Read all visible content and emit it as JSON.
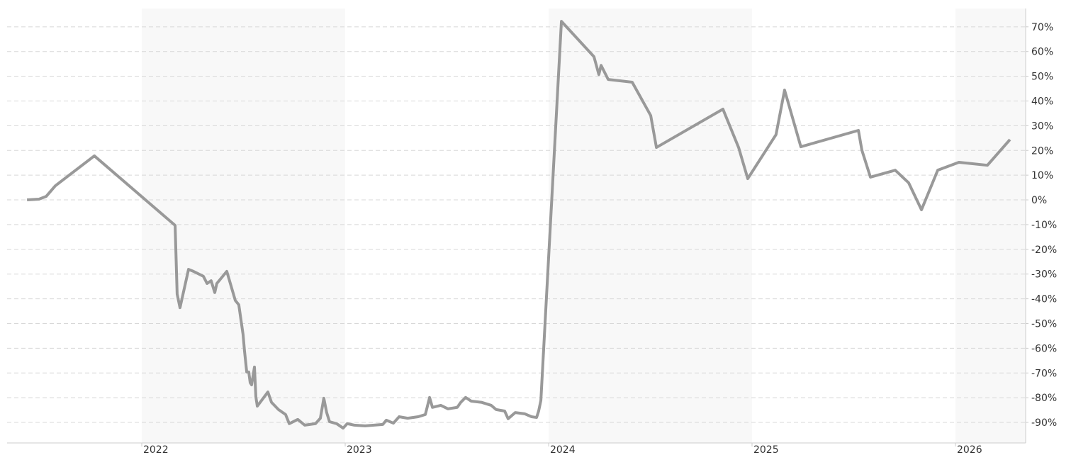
{
  "chart_data": {
    "type": "line",
    "x": [
      2021.436,
      2021.495,
      2021.53,
      2021.575,
      2021.767,
      2022.164,
      2022.174,
      2022.188,
      2022.23,
      2022.254,
      2022.303,
      2022.321,
      2022.341,
      2022.359,
      2022.369,
      2022.418,
      2022.46,
      2022.477,
      2022.498,
      2022.505,
      2022.516,
      2022.526,
      2022.533,
      2022.54,
      2022.554,
      2022.561,
      2022.568,
      2022.62,
      2022.638,
      2022.672,
      2022.707,
      2022.725,
      2022.767,
      2022.801,
      2022.854,
      2022.878,
      2022.895,
      2022.909,
      2022.923,
      2022.958,
      2022.99,
      2023.01,
      2023.045,
      2023.098,
      2023.185,
      2023.202,
      2023.237,
      2023.265,
      2023.307,
      2023.359,
      2023.394,
      2023.415,
      2023.429,
      2023.47,
      2023.505,
      2023.551,
      2023.568,
      2023.592,
      2023.62,
      2023.672,
      2023.718,
      2023.742,
      2023.784,
      2023.801,
      2023.836,
      2023.882,
      2023.916,
      2023.941,
      2023.951,
      2023.962,
      2024.063,
      2024.223,
      2024.247,
      2024.258,
      2024.293,
      2024.411,
      2024.502,
      2024.53,
      2024.857,
      2024.934,
      2024.979,
      2025.118,
      2025.16,
      2025.24,
      2025.523,
      2025.54,
      2025.582,
      2025.704,
      2025.77,
      2025.833,
      2025.913,
      2026.017,
      2026.157,
      2026.268
    ],
    "series": [
      {
        "color": "#999999",
        "values": [
          0,
          0.3,
          1.4,
          5.7,
          17.8,
          -10.3,
          -38.1,
          -43.6,
          -28.1,
          -28.9,
          -30.9,
          -33.8,
          -32.7,
          -37.5,
          -33.8,
          -28.9,
          -40.7,
          -42.4,
          -54.4,
          -61.0,
          -69.6,
          -69.6,
          -73.9,
          -74.8,
          -67.6,
          -79.7,
          -83.4,
          -77.7,
          -81.9,
          -84.8,
          -86.8,
          -90.5,
          -88.8,
          -91.1,
          -90.5,
          -88.3,
          -80.2,
          -86.0,
          -89.7,
          -90.5,
          -92.3,
          -90.5,
          -91.1,
          -91.4,
          -90.8,
          -89.1,
          -90.3,
          -87.7,
          -88.3,
          -87.7,
          -86.8,
          -79.9,
          -83.9,
          -83.1,
          -84.5,
          -83.9,
          -81.9,
          -79.9,
          -81.4,
          -81.9,
          -83.1,
          -84.8,
          -85.4,
          -88.5,
          -86.0,
          -86.5,
          -87.7,
          -88.0,
          -85.4,
          -81.1,
          72.2,
          57.9,
          50.7,
          54.4,
          48.7,
          47.6,
          34.1,
          21.2,
          36.7,
          21.2,
          8.6,
          26.4,
          44.4,
          21.5,
          28.1,
          20.1,
          9.2,
          12.0,
          6.9,
          -4.0,
          12.0,
          15.2,
          14.0,
          24.4
        ]
      }
    ],
    "xlim": [
      2021.338,
      2026.345
    ],
    "xticks": [
      2022,
      2023,
      2024,
      2025,
      2026
    ],
    "ylim": [
      -98.3,
      77.4
    ],
    "yticks": [
      {
        "value": -90,
        "label": "-90%"
      },
      {
        "value": -80,
        "label": "-80%"
      },
      {
        "value": -70,
        "label": "-70%"
      },
      {
        "value": -60,
        "label": "-60%"
      },
      {
        "value": -50,
        "label": "-50%"
      },
      {
        "value": -40,
        "label": "-40%"
      },
      {
        "value": -30,
        "label": "-30%"
      },
      {
        "value": -20,
        "label": "-20%"
      },
      {
        "value": -10,
        "label": "-10%"
      },
      {
        "value": 0,
        "label": "0%"
      },
      {
        "value": 10,
        "label": "10%"
      },
      {
        "value": 20,
        "label": "20%"
      },
      {
        "value": 30,
        "label": "30%"
      },
      {
        "value": 40,
        "label": "40%"
      },
      {
        "value": 50,
        "label": "50%"
      },
      {
        "value": 60,
        "label": "60%"
      },
      {
        "value": 70,
        "label": "70%"
      }
    ],
    "grid": true,
    "y_axis_side": "right"
  }
}
